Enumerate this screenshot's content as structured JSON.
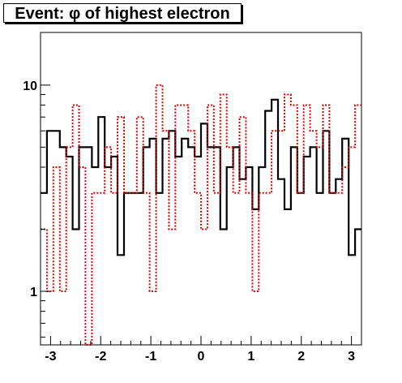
{
  "chart_data": {
    "type": "histogram",
    "title": "Event: φ of highest electron",
    "x_range": [
      -3.2,
      3.2
    ],
    "y_range": [
      0.55,
      18
    ],
    "y_scale": "log",
    "x_ticks": [
      {
        "value": -3,
        "label": "-3"
      },
      {
        "value": -2,
        "label": "-2"
      },
      {
        "value": -1,
        "label": "-1"
      },
      {
        "value": 0,
        "label": "0"
      },
      {
        "value": 1,
        "label": "1"
      },
      {
        "value": 2,
        "label": "2"
      },
      {
        "value": 3,
        "label": "3"
      }
    ],
    "y_ticks": [
      {
        "value": 1,
        "label": "1"
      },
      {
        "value": 10,
        "label": "10"
      }
    ],
    "grid": false,
    "series": [
      {
        "style": "solid",
        "color": "#000000",
        "bins": 50,
        "values": [
          3,
          6,
          6,
          5,
          4.5,
          2,
          5,
          5,
          4,
          7,
          4,
          4.5,
          1.5,
          3,
          3,
          3,
          5,
          5.5,
          3,
          5.5,
          6,
          4.5,
          5.5,
          5,
          4.5,
          6.5,
          5,
          5,
          2,
          4,
          5,
          3.5,
          4,
          2.5,
          4,
          7.5,
          8.5,
          3.5,
          2.5,
          5,
          3,
          4.5,
          5,
          3,
          6,
          3,
          3.5,
          5.5,
          1.5,
          2
        ]
      },
      {
        "style": "dotted",
        "color": "#dd0000",
        "bins": 50,
        "values": [
          2,
          1,
          4,
          1,
          5,
          8,
          4,
          0.5,
          3,
          3,
          5,
          3,
          7,
          3,
          3,
          7,
          3,
          1,
          10,
          6,
          2,
          8,
          8,
          6,
          3,
          2,
          8,
          3,
          9,
          5,
          3,
          7,
          3,
          1,
          3,
          3,
          6,
          6,
          9,
          8,
          3,
          8,
          6,
          5,
          8,
          3,
          3,
          4,
          5,
          8
        ]
      }
    ]
  }
}
